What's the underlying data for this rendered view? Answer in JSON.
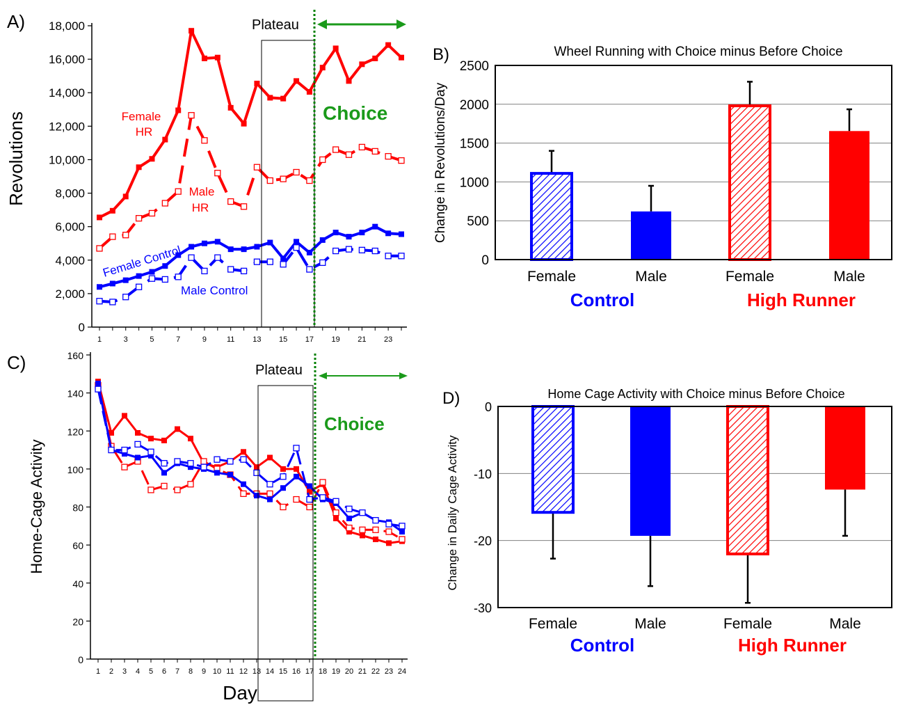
{
  "chart_data": [
    {
      "panel": "A)",
      "type": "line",
      "title": "",
      "xlabel": "",
      "ylabel": "Revolutions",
      "ylim": [
        0,
        18000
      ],
      "yticks": [
        "0",
        "2,000",
        "4,000",
        "6,000",
        "8,000",
        "10,000",
        "12,000",
        "14,000",
        "16,000",
        "18,000"
      ],
      "xticks": [
        "1",
        "3",
        "5",
        "7",
        "9",
        "11",
        "13",
        "15",
        "17",
        "19",
        "21",
        "23"
      ],
      "grid": false,
      "annotations": {
        "plateau": "Plateau",
        "choice": "Choice"
      },
      "series": [
        {
          "name": "Female HR",
          "label_lines": [
            "Female",
            "HR"
          ],
          "color": "#ff0000",
          "style": "solid",
          "marker": "filled-square",
          "x": [
            1,
            2,
            3,
            4,
            5,
            6,
            7,
            8,
            9,
            10,
            11,
            12,
            13,
            14,
            15,
            16,
            17,
            18,
            19,
            20,
            21,
            22,
            23,
            24
          ],
          "values": [
            6550,
            6950,
            7800,
            9550,
            10050,
            11200,
            12950,
            17700,
            16050,
            16100,
            13100,
            12150,
            14550,
            13700,
            13650,
            14700,
            14050,
            15500,
            16650,
            14700,
            15700,
            16050,
            16850,
            16100
          ]
        },
        {
          "name": "Male HR",
          "label_lines": [
            "Male",
            "HR"
          ],
          "color": "#ff0000",
          "style": "dashed",
          "marker": "open-square",
          "x": [
            1,
            2,
            3,
            4,
            5,
            6,
            7,
            8,
            9,
            10,
            11,
            12,
            13,
            14,
            15,
            16,
            17,
            18,
            19,
            20,
            21,
            22,
            23,
            24
          ],
          "values": [
            4700,
            5400,
            5500,
            6500,
            6800,
            7400,
            8100,
            12650,
            11150,
            9200,
            7500,
            7200,
            9550,
            8750,
            8850,
            9250,
            8750,
            10000,
            10600,
            10300,
            10750,
            10500,
            10200,
            9950
          ]
        },
        {
          "name": "Female Control",
          "label_lines": [
            "Female Control"
          ],
          "color": "#0000ff",
          "style": "solid",
          "marker": "filled-square",
          "x": [
            1,
            2,
            3,
            4,
            5,
            6,
            7,
            8,
            9,
            10,
            11,
            12,
            13,
            14,
            15,
            16,
            17,
            18,
            19,
            20,
            21,
            22,
            23,
            24
          ],
          "values": [
            2400,
            2600,
            2800,
            3050,
            3300,
            3650,
            4300,
            4800,
            5000,
            5100,
            4650,
            4650,
            4800,
            5050,
            4100,
            5100,
            4450,
            5200,
            5650,
            5400,
            5650,
            6000,
            5600,
            5550
          ]
        },
        {
          "name": "Male Control",
          "label_lines": [
            "Male Control"
          ],
          "color": "#0000ff",
          "style": "dashed",
          "marker": "open-square",
          "x": [
            1,
            2,
            3,
            4,
            5,
            6,
            7,
            8,
            9,
            10,
            11,
            12,
            13,
            14,
            15,
            16,
            17,
            18,
            19,
            20,
            21,
            22,
            23,
            24
          ],
          "values": [
            1550,
            1500,
            1800,
            2400,
            2900,
            2850,
            3000,
            4150,
            3350,
            4150,
            3450,
            3350,
            3900,
            3900,
            3750,
            4750,
            3450,
            3850,
            4550,
            4650,
            4600,
            4550,
            4250,
            4250
          ]
        }
      ]
    },
    {
      "panel": "B)",
      "type": "bar",
      "title": "Wheel Running with Choice minus Before Choice",
      "xlabel": "",
      "ylabel": "Change in Revolutions/Day",
      "ylim": [
        0,
        2500
      ],
      "yticks": [
        "0",
        "500",
        "1000",
        "1500",
        "2000",
        "2500"
      ],
      "grid": true,
      "categories": [
        "Female",
        "Male",
        "Female",
        "Male"
      ],
      "groups": [
        "Control",
        "High Runner"
      ],
      "values": [
        1110,
        620,
        1980,
        1655
      ],
      "errors": [
        290,
        330,
        310,
        280
      ],
      "colors": [
        "#0000ff",
        "#0000ff",
        "#ff0000",
        "#ff0000"
      ],
      "hatched": [
        true,
        false,
        true,
        false
      ]
    },
    {
      "panel": "C)",
      "type": "line",
      "title": "",
      "xlabel": "Day",
      "ylabel": "Home-Cage Activity",
      "ylim": [
        0,
        160
      ],
      "yticks": [
        "0",
        "20",
        "40",
        "60",
        "80",
        "100",
        "120",
        "140",
        "160"
      ],
      "xticks": [
        "1",
        "2",
        "3",
        "4",
        "5",
        "6",
        "7",
        "8",
        "9",
        "10",
        "11",
        "12",
        "13",
        "14",
        "15",
        "16",
        "17",
        "18",
        "19",
        "20",
        "21",
        "22",
        "23",
        "24"
      ],
      "grid": false,
      "annotations": {
        "plateau": "Plateau",
        "choice": "Choice"
      },
      "series": [
        {
          "color": "#ff0000",
          "style": "solid",
          "marker": "filled-square",
          "x": [
            1,
            2,
            3,
            4,
            5,
            6,
            7,
            8,
            9,
            10,
            11,
            12,
            13,
            14,
            15,
            16,
            17,
            18,
            19,
            20,
            21,
            22,
            23,
            24
          ],
          "values": [
            146,
            119,
            128,
            119,
            116,
            115,
            121,
            116,
            103,
            101,
            104,
            109,
            101,
            106,
            100,
            100,
            88,
            92,
            74,
            67,
            65,
            63,
            61,
            62
          ]
        },
        {
          "color": "#ff0000",
          "style": "dashed",
          "marker": "open-square",
          "x": [
            1,
            2,
            3,
            4,
            5,
            6,
            7,
            8,
            9,
            10,
            11,
            12,
            13,
            14,
            15,
            16,
            17,
            18,
            19,
            20,
            21,
            22,
            23,
            24
          ],
          "values": [
            144,
            112,
            101,
            104,
            89,
            91,
            89,
            92,
            104,
            100,
            97,
            87,
            87,
            87,
            80,
            84,
            80,
            93,
            77,
            69,
            68,
            68,
            67,
            63
          ]
        },
        {
          "color": "#0000ff",
          "style": "solid",
          "marker": "filled-square",
          "x": [
            1,
            2,
            3,
            4,
            5,
            6,
            7,
            8,
            9,
            10,
            11,
            12,
            13,
            14,
            15,
            16,
            17,
            18,
            19,
            20,
            21,
            22,
            23,
            24
          ],
          "values": [
            145,
            110,
            108,
            106,
            107,
            98,
            103,
            101,
            100,
            98,
            97,
            92,
            86,
            84,
            90,
            96,
            91,
            84,
            82,
            74,
            77,
            73,
            72,
            67
          ]
        },
        {
          "color": "#0000ff",
          "style": "dashed",
          "marker": "open-square",
          "x": [
            1,
            2,
            3,
            4,
            5,
            6,
            7,
            8,
            9,
            10,
            11,
            12,
            13,
            14,
            15,
            16,
            17,
            18,
            19,
            20,
            21,
            22,
            23,
            24
          ],
          "values": [
            142,
            110,
            110,
            113,
            109,
            103,
            104,
            103,
            101,
            105,
            104,
            105,
            98,
            92,
            96,
            111,
            84,
            85,
            83,
            79,
            77,
            73,
            71,
            70
          ]
        }
      ]
    },
    {
      "panel": "D)",
      "type": "bar",
      "title": "Home Cage Activity with Choice minus Before Choice",
      "xlabel": "",
      "ylabel": "Change in Daily Cage Activity",
      "ylim": [
        -30,
        0
      ],
      "yticks": [
        "0",
        "-10",
        "-20",
        "-30"
      ],
      "grid": true,
      "categories": [
        "Female",
        "Male",
        "Female",
        "Male"
      ],
      "groups": [
        "Control",
        "High Runner"
      ],
      "values": [
        -15.8,
        -19.3,
        -22.0,
        -12.4
      ],
      "errors": [
        6.9,
        7.5,
        7.3,
        6.9
      ],
      "colors": [
        "#0000ff",
        "#0000ff",
        "#ff0000",
        "#ff0000"
      ],
      "hatched": [
        true,
        false,
        true,
        false
      ]
    }
  ]
}
